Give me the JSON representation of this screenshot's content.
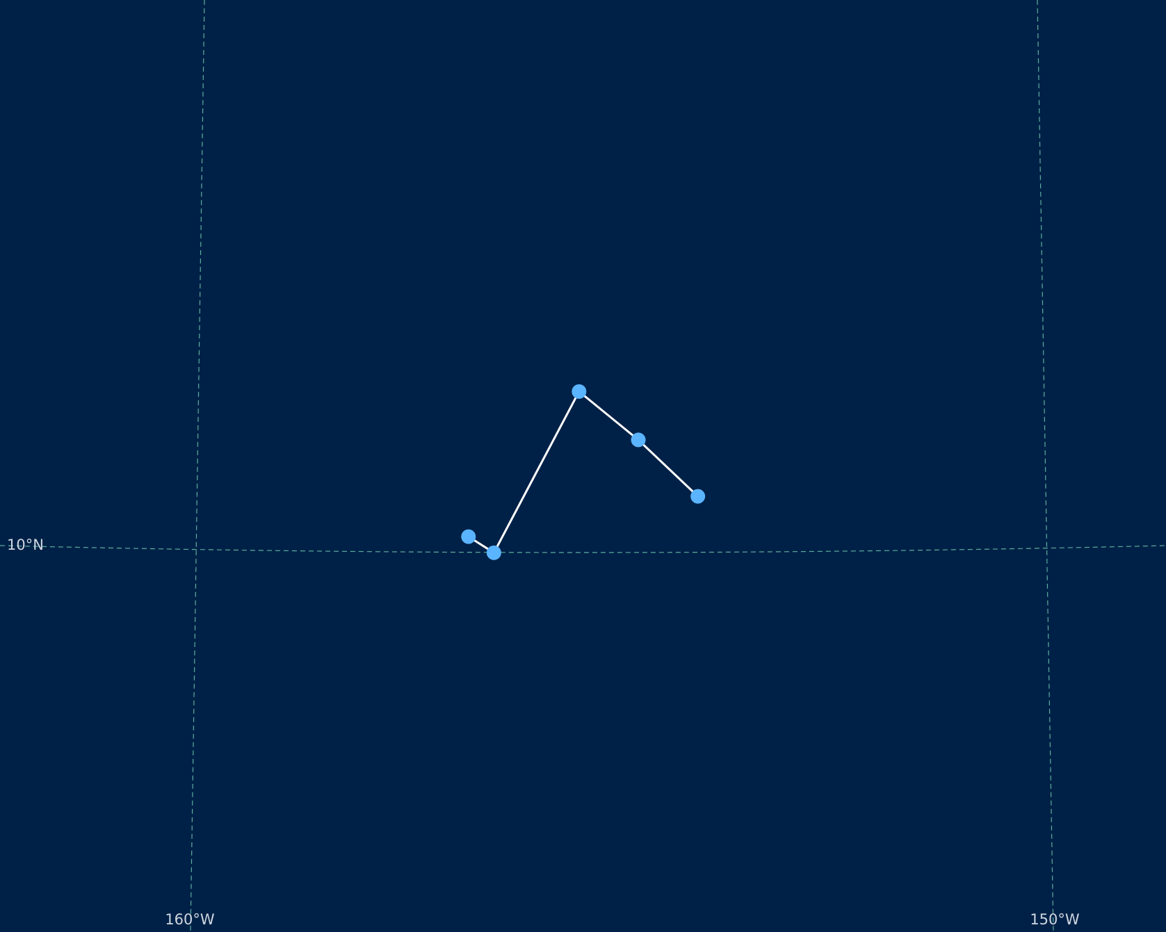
{
  "map": {
    "background_color": "#002147",
    "graticule_color": "#5fae9e",
    "track_line_color": "#ffffff",
    "point_color": "#5bb4ff",
    "projection": "orthographic-like (curved graticule)",
    "graticule": {
      "meridians": [
        {
          "lon": -160,
          "label": "160°W"
        },
        {
          "lon": -150,
          "label": "150°W"
        }
      ],
      "parallels": [
        {
          "lat": 10,
          "label": "10°N"
        }
      ]
    },
    "track": {
      "points": [
        {
          "lon": -156.8,
          "lat": 10.18
        },
        {
          "lon": -156.5,
          "lat": 9.98
        },
        {
          "lon": -155.5,
          "lat": 11.98
        },
        {
          "lon": -154.8,
          "lat": 11.38
        },
        {
          "lon": -154.1,
          "lat": 10.68
        }
      ]
    }
  }
}
